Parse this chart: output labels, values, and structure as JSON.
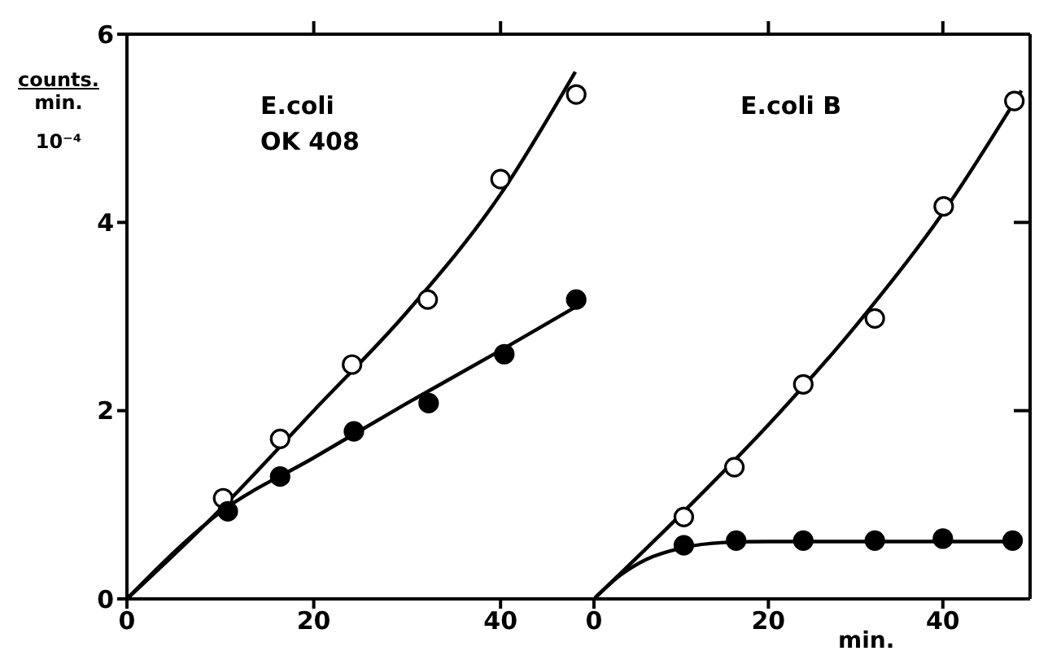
{
  "chart_data": [
    {
      "type": "scatter",
      "ylabel": "counts.\nmin.\n10⁻⁴",
      "annotations": [
        "E.coli\nOK 408"
      ],
      "marker": "circle",
      "xlim": [
        0,
        50
      ],
      "xticks": [
        0,
        20,
        40
      ],
      "ylim": [
        0,
        6
      ],
      "yticks": [
        0,
        2,
        4,
        6
      ],
      "series": [
        {
          "color": "#ffffff",
          "x": [
            10.3,
            16.4,
            24.1,
            32.2,
            40.0,
            48.1
          ],
          "values": [
            1.07,
            1.7,
            2.49,
            3.18,
            4.46,
            5.36
          ]
        },
        {
          "color": "#000000",
          "x": [
            10.8,
            16.4,
            24.3,
            32.3,
            40.4,
            48.1
          ],
          "values": [
            0.93,
            1.3,
            1.78,
            2.08,
            2.6,
            3.18
          ]
        },
        {
          "type": "line",
          "marker": "none",
          "color": "#000000",
          "x": [
            0,
            10,
            20,
            30,
            40,
            48
          ],
          "values": [
            0,
            0.95,
            2.0,
            3.05,
            4.3,
            5.6
          ]
        },
        {
          "type": "line",
          "marker": "none",
          "color": "#000000",
          "x": [
            0,
            10,
            20,
            30,
            40,
            48
          ],
          "values": [
            0,
            0.92,
            1.5,
            2.08,
            2.64,
            3.1
          ]
        }
      ]
    },
    {
      "type": "scatter",
      "xlabel": "min.",
      "annotations": [
        "E.coli B"
      ],
      "marker": "circle",
      "tick_labels": "x",
      "xlim": [
        0,
        50
      ],
      "xticks": [
        0,
        20,
        40
      ],
      "ylim": [
        0,
        6
      ],
      "yticks": [
        {
          "value": 2,
          "label": null
        },
        {
          "value": 4,
          "label": null
        }
      ],
      "series": [
        {
          "color": "#ffffff",
          "x": [
            10.3,
            16.1,
            24.0,
            32.2,
            40.1,
            48.2
          ],
          "values": [
            0.87,
            1.4,
            2.28,
            2.98,
            4.17,
            5.29
          ]
        },
        {
          "color": "#000000",
          "x": [
            10.3,
            16.3,
            24.0,
            32.2,
            40.0,
            48.0
          ],
          "values": [
            0.57,
            0.62,
            0.62,
            0.62,
            0.64,
            0.62
          ]
        },
        {
          "type": "line",
          "marker": "none",
          "color": "#000000",
          "x": [
            0,
            10,
            20,
            30,
            40,
            49
          ],
          "values": [
            0,
            0.9,
            1.85,
            2.9,
            4.1,
            5.4
          ]
        },
        {
          "type": "line",
          "marker": "none",
          "color": "#000000",
          "x": [
            0,
            3,
            6,
            10,
            15,
            20,
            48
          ],
          "values": [
            0,
            0.25,
            0.42,
            0.54,
            0.6,
            0.61,
            0.61
          ]
        }
      ]
    }
  ]
}
